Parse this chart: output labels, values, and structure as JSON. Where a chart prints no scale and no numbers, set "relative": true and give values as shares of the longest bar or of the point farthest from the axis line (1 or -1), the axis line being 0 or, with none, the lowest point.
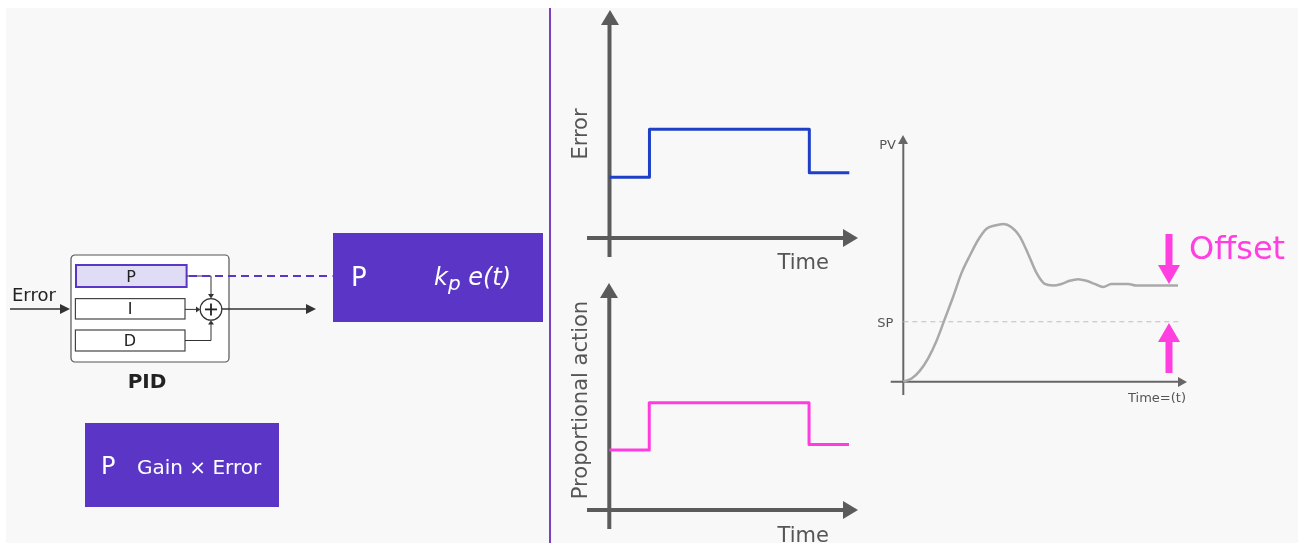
{
  "chart_data": [
    {
      "type": "other",
      "annotations": [
        "Error",
        "P",
        "I",
        "D",
        "PID",
        "P",
        "k$_{p}$ e(t)",
        "P",
        "Gain × Error"
      ]
    },
    {
      "type": "step",
      "ylabel": "Error",
      "xlabel": "Time",
      "relative": true,
      "categories": [
        null,
        null,
        null,
        null,
        null,
        null,
        null,
        null,
        null,
        null,
        null,
        null,
        null,
        null,
        null,
        null,
        null,
        null,
        null,
        null,
        null,
        null,
        null,
        null,
        null
      ],
      "values": [
        0.56,
        0.56,
        0.56,
        0.56,
        0.56,
        1,
        1,
        1,
        1,
        1,
        1,
        1,
        1,
        1,
        1,
        1,
        1,
        1,
        1,
        1,
        1,
        0.6,
        0.6,
        0.6,
        0.6
      ],
      "color": "#1e40c8",
      "marker": "none"
    },
    {
      "type": "step",
      "ylabel": "Proportional action",
      "xlabel": "Time",
      "relative": true,
      "categories": [
        null,
        null,
        null,
        null,
        null,
        null,
        null,
        null,
        null,
        null,
        null,
        null,
        null,
        null,
        null,
        null,
        null,
        null,
        null,
        null,
        null,
        null,
        null,
        null,
        null
      ],
      "values": [
        0.56,
        0.56,
        0.56,
        0.56,
        0.56,
        1,
        1,
        1,
        1,
        1,
        1,
        1,
        1,
        1,
        1,
        1,
        1,
        1,
        1,
        1,
        1,
        0.61,
        0.61,
        0.61,
        0.61
      ],
      "color": "#ff3ce0",
      "marker": "none"
    },
    {
      "type": "line",
      "ylabel": "PV",
      "xlabel": "Time=(t)",
      "relative": true,
      "categories": [
        null,
        null,
        null,
        null,
        null,
        null,
        null,
        null,
        null,
        null,
        null,
        null,
        null,
        null,
        null,
        null,
        null,
        null,
        null,
        null,
        null,
        null,
        null,
        null,
        null,
        null,
        null,
        null,
        null,
        null,
        null,
        null,
        null,
        null
      ],
      "values": [
        0,
        0.02,
        0.07,
        0.15,
        0.26,
        0.4,
        0.54,
        0.69,
        0.8,
        0.9,
        0.97,
        0.99,
        1,
        0.98,
        0.92,
        0.81,
        0.69,
        0.62,
        0.61,
        0.62,
        0.64,
        0.65,
        0.64,
        0.62,
        0.6,
        0.62,
        0.62,
        0.62,
        0.61,
        0.61,
        0.61,
        0.61,
        0.61,
        0.61
      ],
      "color": "#a9a9a9",
      "marker": "none",
      "ref_lines": [
        {
          "axis": "y",
          "value": 0.38,
          "label": "SP",
          "color": "#bdbdbd",
          "line_style": "dashed"
        }
      ],
      "annotations": [
        "Offset"
      ]
    }
  ]
}
